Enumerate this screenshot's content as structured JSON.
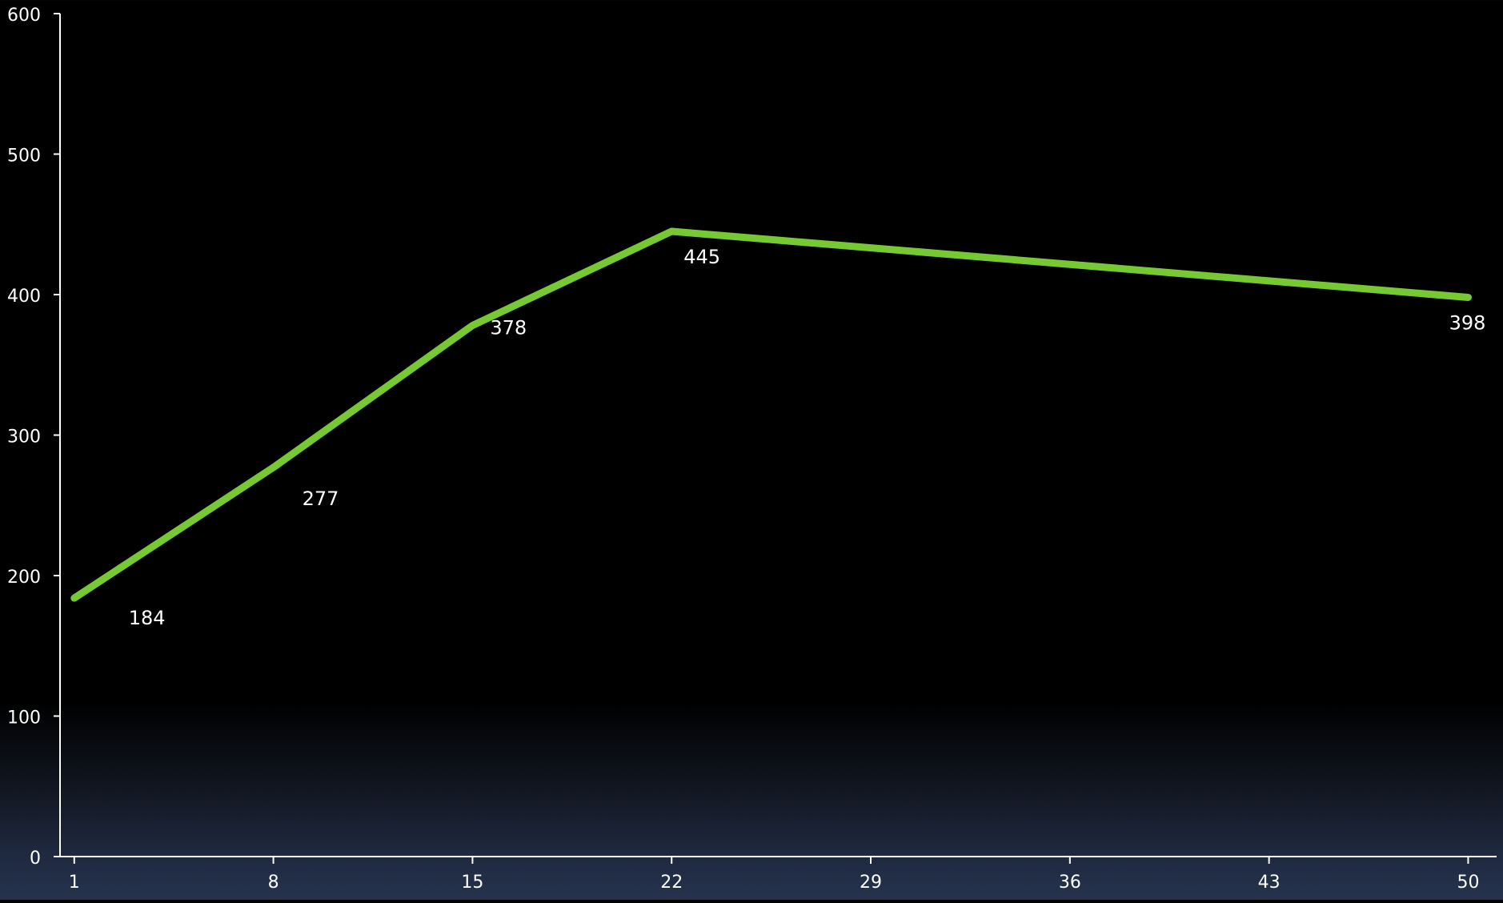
{
  "chart_data": {
    "type": "line",
    "x": [
      1,
      8,
      15,
      22,
      50
    ],
    "series": [
      {
        "values": [
          184,
          277,
          378,
          445,
          398
        ],
        "color": "#76c933"
      }
    ],
    "data_labels": [
      "184",
      "277",
      "378",
      "445",
      "398"
    ],
    "x_ticks": [
      "1",
      "8",
      "15",
      "22",
      "29",
      "36",
      "43",
      "50"
    ],
    "y_ticks": [
      "0",
      "100",
      "200",
      "300",
      "400",
      "500",
      "600"
    ],
    "ylim": [
      0,
      600
    ],
    "xlim": [
      0.5,
      51
    ],
    "grid": false,
    "legend": false,
    "title": "",
    "xlabel": "",
    "ylabel": ""
  },
  "colors": {
    "line": "#76c933",
    "axis": "#ffffff",
    "text": "#ffffff",
    "background_top": "#000000",
    "background_bottom": "#26334d"
  }
}
